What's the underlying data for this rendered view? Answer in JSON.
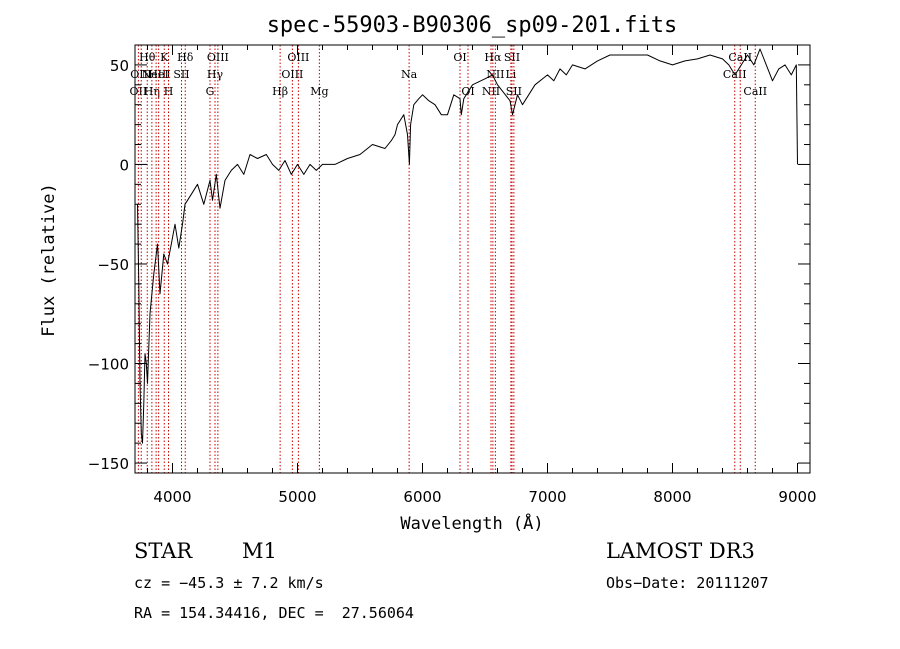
{
  "chart_data": {
    "type": "line",
    "title": "spec-55903-B90306_sp09-201.fits",
    "xlabel": "Wavelength (Å)",
    "ylabel": "Flux (relative)",
    "xlim": [
      3700,
      9100
    ],
    "ylim": [
      -155,
      60
    ],
    "xticks": [
      4000,
      5000,
      6000,
      7000,
      8000,
      9000
    ],
    "yticks": [
      -150,
      -100,
      -50,
      0,
      50
    ],
    "grid": false,
    "line_color": "#000000",
    "marker_color": "#cc0000",
    "series": [
      {
        "x": [
          3720,
          3730,
          3740,
          3750,
          3760,
          3770,
          3780,
          3790,
          3800,
          3820,
          3850,
          3880,
          3900,
          3930,
          3960,
          3990,
          4020,
          4050,
          4080,
          4100,
          4150,
          4200,
          4250,
          4300,
          4320,
          4350,
          4380,
          4420,
          4470,
          4520,
          4570,
          4620,
          4680,
          4750,
          4800,
          4850,
          4900,
          4950,
          5000,
          5050,
          5100,
          5150,
          5200,
          5300,
          5400,
          5500,
          5600,
          5700,
          5750,
          5780,
          5800,
          5850,
          5880,
          5895,
          5905,
          5930,
          5970,
          6000,
          6050,
          6100,
          6150,
          6200,
          6250,
          6300,
          6310,
          6330,
          6400,
          6500,
          6560,
          6600,
          6700,
          6720,
          6760,
          6800,
          6900,
          7000,
          7050,
          7100,
          7150,
          7200,
          7300,
          7400,
          7500,
          7600,
          7700,
          7800,
          7900,
          8000,
          8100,
          8200,
          8300,
          8400,
          8450,
          8500,
          8550,
          8600,
          8650,
          8700,
          8750,
          8800,
          8850,
          8900,
          8950,
          8990,
          9000
        ],
        "y": [
          -20,
          -60,
          -110,
          -135,
          -140,
          -120,
          -95,
          -100,
          -110,
          -75,
          -55,
          -40,
          -65,
          -45,
          -50,
          -40,
          -30,
          -42,
          -30,
          -20,
          -15,
          -10,
          -20,
          -8,
          -18,
          -5,
          -22,
          -8,
          -3,
          0,
          -5,
          5,
          3,
          5,
          0,
          -3,
          2,
          -5,
          0,
          -5,
          0,
          -3,
          0,
          0,
          3,
          5,
          10,
          8,
          12,
          15,
          20,
          25,
          15,
          0,
          20,
          30,
          33,
          35,
          32,
          30,
          25,
          25,
          35,
          33,
          25,
          33,
          40,
          43,
          45,
          40,
          32,
          25,
          35,
          30,
          40,
          45,
          42,
          48,
          45,
          50,
          48,
          52,
          55,
          55,
          55,
          55,
          52,
          50,
          52,
          53,
          55,
          53,
          50,
          45,
          50,
          55,
          50,
          58,
          50,
          42,
          48,
          50,
          45,
          50,
          0
        ]
      }
    ],
    "line_markers": [
      {
        "x": 3727,
        "labels": [
          "OII"
        ],
        "row": 2
      },
      {
        "x": 3750,
        "labels": [
          "OIII"
        ],
        "row": 1
      },
      {
        "x": 3798,
        "labels": [
          "Hθ"
        ],
        "row": 0
      },
      {
        "x": 3835,
        "labels": [
          "Hη"
        ],
        "row": 2
      },
      {
        "x": 3869,
        "labels": [
          "NeIII"
        ],
        "row": 1
      },
      {
        "x": 3889,
        "labels": [
          "HeI"
        ],
        "row": 1
      },
      {
        "x": 3934,
        "labels": [
          "K"
        ],
        "row": 0
      },
      {
        "x": 3968,
        "labels": [
          "H"
        ],
        "row": 2
      },
      {
        "x": 4072,
        "labels": [
          "SII"
        ],
        "row": 1
      },
      {
        "x": 4102,
        "labels": [
          "Hδ"
        ],
        "row": 0
      },
      {
        "x": 4300,
        "labels": [
          "G"
        ],
        "row": 2
      },
      {
        "x": 4340,
        "labels": [
          "Hγ"
        ],
        "row": 1
      },
      {
        "x": 4363,
        "labels": [
          "OIII"
        ],
        "row": 0
      },
      {
        "x": 4861,
        "labels": [
          "Hβ"
        ],
        "row": 2
      },
      {
        "x": 4959,
        "labels": [
          "OIII"
        ],
        "row": 1
      },
      {
        "x": 5007,
        "labels": [
          "OIII"
        ],
        "row": 0
      },
      {
        "x": 5175,
        "labels": [
          "Mg"
        ],
        "row": 2
      },
      {
        "x": 5893,
        "labels": [
          "Na"
        ],
        "row": 1
      },
      {
        "x": 6300,
        "labels": [
          "OI"
        ],
        "row": 0
      },
      {
        "x": 6364,
        "labels": [
          "OI"
        ],
        "row": 2
      },
      {
        "x": 6548,
        "labels": [
          "NII"
        ],
        "row": 2
      },
      {
        "x": 6563,
        "labels": [
          "Hα"
        ],
        "row": 0
      },
      {
        "x": 6583,
        "labels": [
          "NII"
        ],
        "row": 1
      },
      {
        "x": 6707,
        "labels": [
          "Li"
        ],
        "row": 1
      },
      {
        "x": 6716,
        "labels": [
          "SII"
        ],
        "row": 0
      },
      {
        "x": 6731,
        "labels": [
          "SII"
        ],
        "row": 2
      },
      {
        "x": 8498,
        "labels": [
          "CaII"
        ],
        "row": 1
      },
      {
        "x": 8542,
        "labels": [
          "CaII"
        ],
        "row": 0
      },
      {
        "x": 8662,
        "labels": [
          "CaII"
        ],
        "row": 2
      }
    ]
  },
  "info": {
    "object_class": "STAR",
    "subclass": "M1",
    "survey": "LAMOST DR3",
    "cz": "cz = −45.3 ± 7.2 km/s",
    "obs_date": "Obs−Date: 20111207",
    "coords": "RA = 154.34416, DEC =  27.56064"
  }
}
